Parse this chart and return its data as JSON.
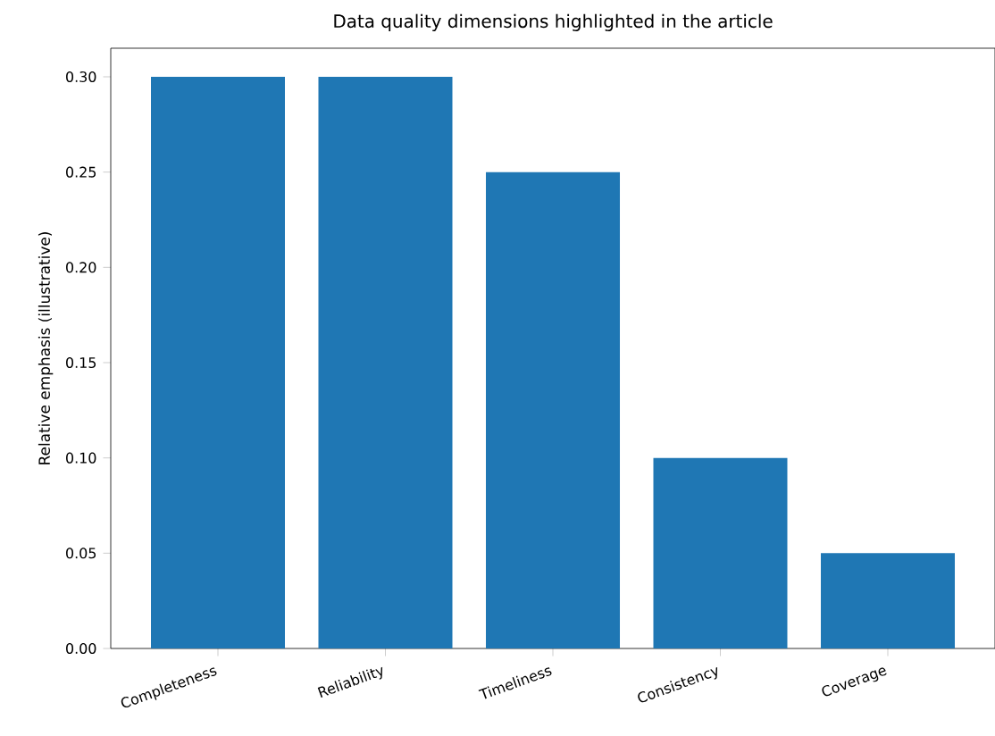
{
  "chart_data": {
    "type": "bar",
    "title": "Data quality dimensions highlighted in the article",
    "categories": [
      "Completeness",
      "Reliability",
      "Timeliness",
      "Consistency",
      "Coverage"
    ],
    "values": [
      0.3,
      0.3,
      0.25,
      0.1,
      0.05
    ],
    "color": "#1f77b4",
    "ylabel": "Relative emphasis (illustrative)",
    "ylim": [
      0,
      0.315
    ],
    "yticks": [
      {
        "value": 0,
        "label": "0.00"
      },
      {
        "value": 0.05,
        "label": "0.05"
      },
      {
        "value": 0.1,
        "label": "0.10"
      },
      {
        "value": 0.15,
        "label": "0.15"
      },
      {
        "value": 0.2,
        "label": "0.20"
      },
      {
        "value": 0.25,
        "label": "0.25"
      },
      {
        "value": 0.3,
        "label": "0.30"
      }
    ]
  }
}
